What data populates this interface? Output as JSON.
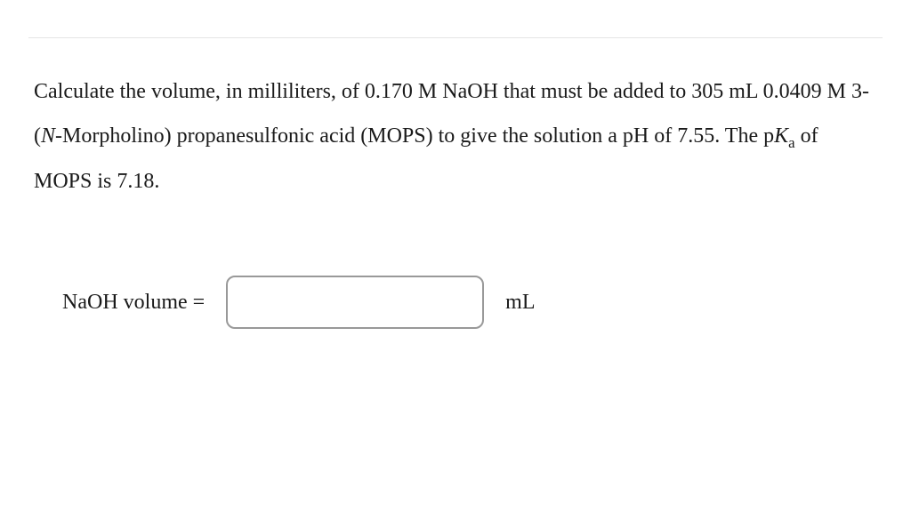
{
  "question": {
    "line1_prefix": "Calculate the volume, in milliliters, of 0.170 M NaOH that must be added to 305 mL 0.0409 M 3-(",
    "line1_italic": "N",
    "line1_suffix": "-Morpholino)",
    "line2_before_pka": "propanesulfonic acid (MOPS) to give the solution a pH of 7.55. The p",
    "pka_k": "K",
    "pka_sub": "a",
    "line2_after_pka": " of MOPS is 7.18."
  },
  "answer": {
    "label": "NaOH volume =",
    "value": "",
    "unit": "mL"
  },
  "styling": {
    "background_color": "#ffffff",
    "text_color": "#1a1a1a",
    "divider_color": "#e5e5e5",
    "input_border_color": "#999999",
    "font_family": "Times New Roman",
    "question_fontsize": 24,
    "label_fontsize": 24,
    "input_width": 290,
    "input_height": 60,
    "input_border_radius": 10
  }
}
